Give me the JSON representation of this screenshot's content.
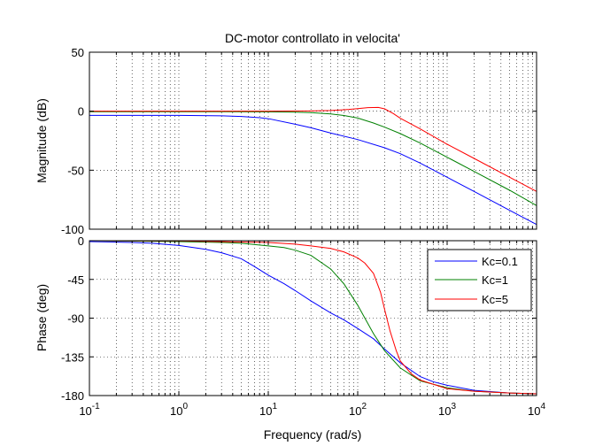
{
  "chart_data": [
    {
      "type": "line",
      "title": "DC-motor controllato in velocita'",
      "ylabel": "Magnitude (dB)",
      "xlabel": "",
      "xscale": "log",
      "xlim": [
        0.1,
        10000
      ],
      "ylim": [
        -100,
        50
      ],
      "grid": true,
      "yticks": [
        {
          "v": 50,
          "label": "50"
        },
        {
          "v": 0,
          "label": "0"
        },
        {
          "v": -50,
          "label": "-50"
        },
        {
          "v": -100,
          "label": "-100"
        }
      ],
      "series": [
        {
          "name": "Kc=0.1",
          "color": "#0000ff",
          "x": [
            0.1,
            1,
            3,
            5,
            8,
            10,
            20,
            30,
            50,
            100,
            200,
            300,
            500,
            1000,
            2000,
            5000,
            10000
          ],
          "y": [
            -3.5,
            -3.5,
            -3.9,
            -4.5,
            -5.5,
            -6.3,
            -11,
            -14,
            -18.5,
            -24,
            -31,
            -36,
            -44,
            -56,
            -68,
            -84,
            -96
          ]
        },
        {
          "name": "Kc=1",
          "color": "#008000",
          "x": [
            0.1,
            1,
            10,
            20,
            30,
            50,
            70,
            100,
            150,
            200,
            300,
            500,
            1000,
            2000,
            5000,
            10000
          ],
          "y": [
            -0.4,
            -0.4,
            -0.5,
            -0.8,
            -1.2,
            -2.3,
            -3.6,
            -5.8,
            -10,
            -13.5,
            -19,
            -27,
            -39,
            -51,
            -67,
            -80
          ]
        },
        {
          "name": "Kc=5",
          "color": "#ff0000",
          "x": [
            0.1,
            1,
            10,
            30,
            50,
            80,
            100,
            130,
            170,
            200,
            250,
            300,
            500,
            1000,
            2000,
            5000,
            10000
          ],
          "y": [
            0,
            0,
            0,
            0.2,
            0.6,
            1.5,
            2.2,
            3.0,
            3.2,
            2.0,
            -2,
            -6,
            -15,
            -28,
            -40,
            -56,
            -68
          ]
        }
      ]
    },
    {
      "type": "line",
      "title": "",
      "xlabel": "Frequency  (rad/s)",
      "ylabel": "Phase (deg)",
      "xscale": "log",
      "xlim": [
        0.1,
        10000
      ],
      "ylim": [
        -180,
        0
      ],
      "grid": true,
      "legend": "top-right",
      "xticks": [
        {
          "v": 0.1,
          "base": "10",
          "exp": "-1"
        },
        {
          "v": 1,
          "base": "10",
          "exp": "0"
        },
        {
          "v": 10,
          "base": "10",
          "exp": "1"
        },
        {
          "v": 100,
          "base": "10",
          "exp": "2"
        },
        {
          "v": 1000,
          "base": "10",
          "exp": "3"
        },
        {
          "v": 10000,
          "base": "10",
          "exp": "4"
        }
      ],
      "yticks": [
        {
          "v": 0,
          "label": "0"
        },
        {
          "v": -45,
          "label": "-45"
        },
        {
          "v": -90,
          "label": "-90"
        },
        {
          "v": -135,
          "label": "-135"
        },
        {
          "v": -180,
          "label": "-180"
        }
      ],
      "series": [
        {
          "name": "Kc=0.1",
          "color": "#0000ff",
          "x": [
            0.1,
            0.3,
            0.5,
            1,
            2,
            3,
            5,
            7,
            10,
            15,
            20,
            30,
            50,
            70,
            100,
            150,
            200,
            300,
            500,
            700,
            1000,
            2000,
            5000,
            10000
          ],
          "y": [
            -1,
            -2,
            -3,
            -5.5,
            -10,
            -14,
            -21,
            -30,
            -40,
            -50,
            -58,
            -70,
            -84,
            -92,
            -102,
            -114,
            -126,
            -142,
            -158,
            -164,
            -168,
            -174,
            -177,
            -178
          ]
        },
        {
          "name": "Kc=1",
          "color": "#008000",
          "x": [
            0.1,
            1,
            3,
            5,
            10,
            15,
            20,
            30,
            50,
            70,
            100,
            150,
            200,
            300,
            500,
            1000,
            2000,
            5000,
            10000
          ],
          "y": [
            0,
            -1,
            -2,
            -3,
            -6,
            -8,
            -11,
            -17,
            -33,
            -50,
            -75,
            -108,
            -128,
            -148,
            -163,
            -171,
            -175,
            -177,
            -178
          ]
        },
        {
          "name": "Kc=5",
          "color": "#ff0000",
          "x": [
            0.1,
            1,
            10,
            20,
            30,
            50,
            70,
            100,
            120,
            150,
            180,
            200,
            230,
            270,
            300,
            400,
            500,
            1000,
            2000,
            5000,
            10000
          ],
          "y": [
            0,
            -0.3,
            -2,
            -4,
            -6,
            -9,
            -13,
            -20,
            -26,
            -38,
            -60,
            -80,
            -105,
            -128,
            -140,
            -155,
            -162,
            -172,
            -175,
            -177,
            -178
          ]
        }
      ]
    }
  ]
}
